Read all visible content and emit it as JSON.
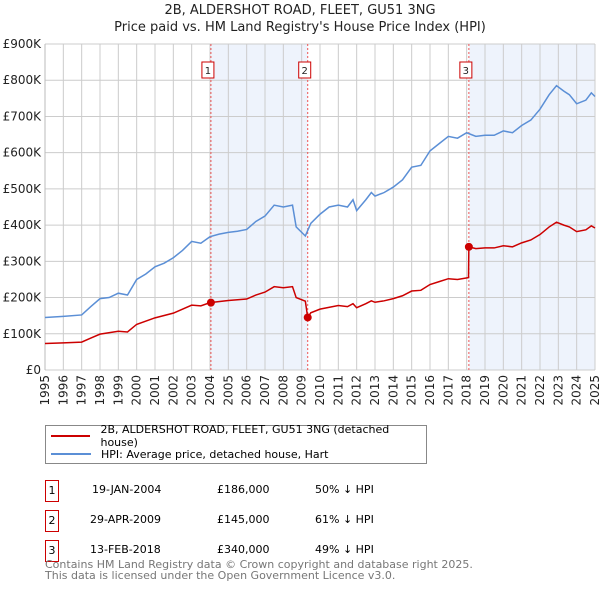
{
  "title": "2B, ALDERSHOT ROAD, FLEET, GU51 3NG",
  "subtitle": "Price paid vs. HM Land Registry's House Price Index (HPI)",
  "chart_data": {
    "type": "line",
    "title": "2B, ALDERSHOT ROAD, FLEET, GU51 3NG",
    "subtitle": "Price paid vs. HM Land Registry's House Price Index (HPI)",
    "xlim": [
      1995,
      2025
    ],
    "ylim": [
      0,
      900000
    ],
    "y_ticks": [
      {
        "v": 0,
        "label": "£0"
      },
      {
        "v": 100000,
        "label": "£100K"
      },
      {
        "v": 200000,
        "label": "£200K"
      },
      {
        "v": 300000,
        "label": "£300K"
      },
      {
        "v": 400000,
        "label": "£400K"
      },
      {
        "v": 500000,
        "label": "£500K"
      },
      {
        "v": 600000,
        "label": "£600K"
      },
      {
        "v": 700000,
        "label": "£700K"
      },
      {
        "v": 800000,
        "label": "£800K"
      },
      {
        "v": 900000,
        "label": "£900K"
      }
    ],
    "x_ticks": [
      "1995",
      "1996",
      "1997",
      "1998",
      "1999",
      "2000",
      "2001",
      "2002",
      "2003",
      "2004",
      "2005",
      "2006",
      "2007",
      "2008",
      "2009",
      "2010",
      "2011",
      "2012",
      "2013",
      "2014",
      "2015",
      "2016",
      "2017",
      "2018",
      "2019",
      "2020",
      "2021",
      "2022",
      "2023",
      "2024",
      "2025"
    ],
    "grid": true,
    "series": [
      {
        "name": "2B, ALDERSHOT ROAD, FLEET, GU51 3NG (detached house)",
        "color": "#cc0000",
        "points": [
          [
            1995,
            73
          ],
          [
            1996,
            75
          ],
          [
            1997,
            77
          ],
          [
            1997.5,
            88
          ],
          [
            1998,
            99
          ],
          [
            1999,
            107
          ],
          [
            1999.5,
            105
          ],
          [
            2000,
            126
          ],
          [
            2001,
            144
          ],
          [
            2002,
            157
          ],
          [
            2003,
            179
          ],
          [
            2003.5,
            177
          ],
          [
            2004,
            186
          ],
          [
            2005,
            192
          ],
          [
            2006,
            196
          ],
          [
            2006.5,
            207
          ],
          [
            2007,
            215
          ],
          [
            2007.5,
            230
          ],
          [
            2008,
            227
          ],
          [
            2008.5,
            230
          ],
          [
            2008.7,
            200
          ],
          [
            2009.2,
            190
          ],
          [
            2009.33,
            145
          ],
          [
            2009.5,
            158
          ],
          [
            2010,
            168
          ],
          [
            2011,
            178
          ],
          [
            2011.5,
            175
          ],
          [
            2011.8,
            183
          ],
          [
            2012,
            172
          ],
          [
            2012.5,
            183
          ],
          [
            2012.8,
            191
          ],
          [
            2013,
            187
          ],
          [
            2013.5,
            191
          ],
          [
            2014,
            197
          ],
          [
            2014.5,
            205
          ],
          [
            2015,
            218
          ],
          [
            2015.5,
            220
          ],
          [
            2016,
            236
          ],
          [
            2016.5,
            244
          ],
          [
            2017,
            252
          ],
          [
            2017.5,
            250
          ],
          [
            2018.1,
            255
          ],
          [
            2018.12,
            340
          ],
          [
            2018.5,
            335
          ],
          [
            2019,
            337
          ],
          [
            2019.5,
            337
          ],
          [
            2020,
            343
          ],
          [
            2020.5,
            340
          ],
          [
            2021,
            351
          ],
          [
            2021.5,
            359
          ],
          [
            2022,
            374
          ],
          [
            2022.5,
            395
          ],
          [
            2022.9,
            408
          ],
          [
            2023.3,
            400
          ],
          [
            2023.6,
            395
          ],
          [
            2024,
            382
          ],
          [
            2024.5,
            387
          ],
          [
            2024.8,
            398
          ],
          [
            2025,
            392
          ]
        ]
      },
      {
        "name": "HPI: Average price, detached house, Hart",
        "color": "#5b8fd6",
        "points": [
          [
            1995,
            145
          ],
          [
            1996,
            148
          ],
          [
            1997,
            152
          ],
          [
            1997.5,
            175
          ],
          [
            1998,
            197
          ],
          [
            1998.5,
            200
          ],
          [
            1999,
            212
          ],
          [
            1999.5,
            207
          ],
          [
            2000,
            250
          ],
          [
            2000.5,
            265
          ],
          [
            2001,
            285
          ],
          [
            2001.5,
            295
          ],
          [
            2002,
            310
          ],
          [
            2002.5,
            330
          ],
          [
            2003,
            355
          ],
          [
            2003.5,
            350
          ],
          [
            2004,
            368
          ],
          [
            2004.5,
            375
          ],
          [
            2005,
            380
          ],
          [
            2005.5,
            383
          ],
          [
            2006,
            388
          ],
          [
            2006.5,
            410
          ],
          [
            2007,
            425
          ],
          [
            2007.5,
            455
          ],
          [
            2008,
            450
          ],
          [
            2008.5,
            455
          ],
          [
            2008.7,
            395
          ],
          [
            2009.2,
            370
          ],
          [
            2009.5,
            405
          ],
          [
            2010,
            430
          ],
          [
            2010.5,
            450
          ],
          [
            2011,
            455
          ],
          [
            2011.5,
            450
          ],
          [
            2011.8,
            470
          ],
          [
            2012,
            440
          ],
          [
            2012.5,
            470
          ],
          [
            2012.8,
            490
          ],
          [
            2013,
            480
          ],
          [
            2013.5,
            490
          ],
          [
            2014,
            505
          ],
          [
            2014.5,
            525
          ],
          [
            2015,
            560
          ],
          [
            2015.5,
            565
          ],
          [
            2016,
            605
          ],
          [
            2016.5,
            625
          ],
          [
            2017,
            645
          ],
          [
            2017.5,
            640
          ],
          [
            2018,
            655
          ],
          [
            2018.5,
            645
          ],
          [
            2019,
            648
          ],
          [
            2019.5,
            648
          ],
          [
            2020,
            660
          ],
          [
            2020.5,
            655
          ],
          [
            2021,
            675
          ],
          [
            2021.5,
            690
          ],
          [
            2022,
            720
          ],
          [
            2022.5,
            760
          ],
          [
            2022.9,
            785
          ],
          [
            2023.3,
            770
          ],
          [
            2023.6,
            760
          ],
          [
            2024,
            735
          ],
          [
            2024.5,
            745
          ],
          [
            2024.8,
            765
          ],
          [
            2025,
            755
          ]
        ]
      }
    ],
    "y_units": "thousands GBP",
    "shaded_ranges": [
      [
        2004.05,
        2009.33
      ],
      [
        2018.12,
        2025
      ]
    ],
    "sales": [
      {
        "n": "1",
        "x": 2004.05,
        "y": 186
      },
      {
        "n": "2",
        "x": 2009.33,
        "y": 145
      },
      {
        "n": "3",
        "x": 2018.12,
        "y": 340
      }
    ]
  },
  "legend": {
    "red": "2B, ALDERSHOT ROAD, FLEET, GU51 3NG (detached house)",
    "blue": "HPI: Average price, detached house, Hart"
  },
  "transactions": [
    {
      "n": "1",
      "date": "19-JAN-2004",
      "price": "£186,000",
      "hpi": "50% ↓ HPI"
    },
    {
      "n": "2",
      "date": "29-APR-2009",
      "price": "£145,000",
      "hpi": "61% ↓ HPI"
    },
    {
      "n": "3",
      "date": "13-FEB-2018",
      "price": "£340,000",
      "hpi": "49% ↓ HPI"
    }
  ],
  "footer": {
    "line1": "Contains HM Land Registry data © Crown copyright and database right 2025.",
    "line2": "This data is licensed under the Open Government Licence v3.0."
  }
}
